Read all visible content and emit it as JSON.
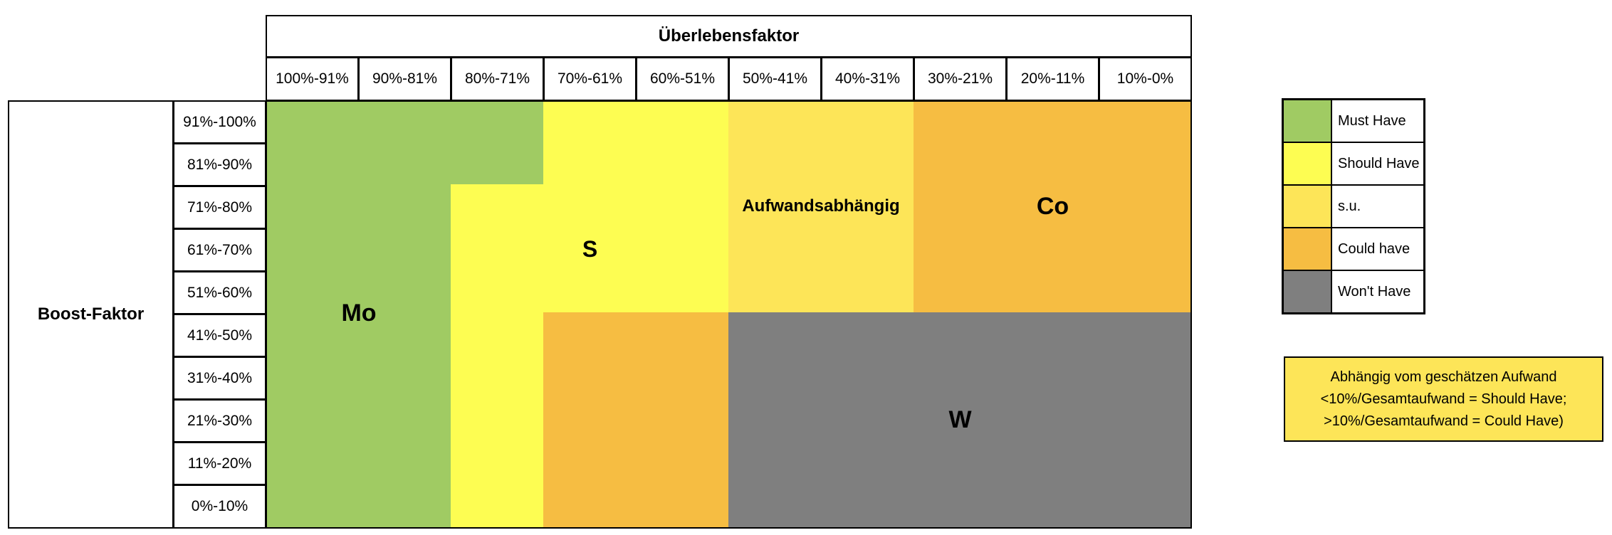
{
  "matrix": {
    "column_axis_title": "Überlebensfaktor",
    "row_axis_title": "Boost-Faktor",
    "columns": [
      "100%-91%",
      "90%-81%",
      "80%-71%",
      "70%-61%",
      "60%-51%",
      "50%-41%",
      "40%-31%",
      "30%-21%",
      "20%-11%",
      "10%-0%"
    ],
    "rows": [
      "91%-100%",
      "81%-90%",
      "71%-80%",
      "61%-70%",
      "51%-60%",
      "41%-50%",
      "31%-40%",
      "21%-30%",
      "11%-20%",
      "0%-10%"
    ],
    "regions": [
      {
        "label": "Mo",
        "category": "must"
      },
      {
        "label": "S",
        "category": "should"
      },
      {
        "label": "Aufwandsabhängig",
        "category": "su"
      },
      {
        "label": "Co",
        "category": "could"
      },
      {
        "label": "W",
        "category": "wont"
      }
    ]
  },
  "legend": [
    {
      "label": "Must Have",
      "color": "#a0cb63"
    },
    {
      "label": "Should Have",
      "color": "#fdfd52"
    },
    {
      "label": "s.u.",
      "color": "#fde558"
    },
    {
      "label": "Could have",
      "color": "#f6bd42"
    },
    {
      "label": "Won't Have",
      "color": "#7f7f7f"
    }
  ],
  "note": {
    "lines": [
      "Abhängig vom geschätzen Aufwand",
      "<10%/Gesamtaufwand = Should Have;",
      ">10%/Gesamtaufwand = Could Have)"
    ],
    "color": "#fde558"
  }
}
